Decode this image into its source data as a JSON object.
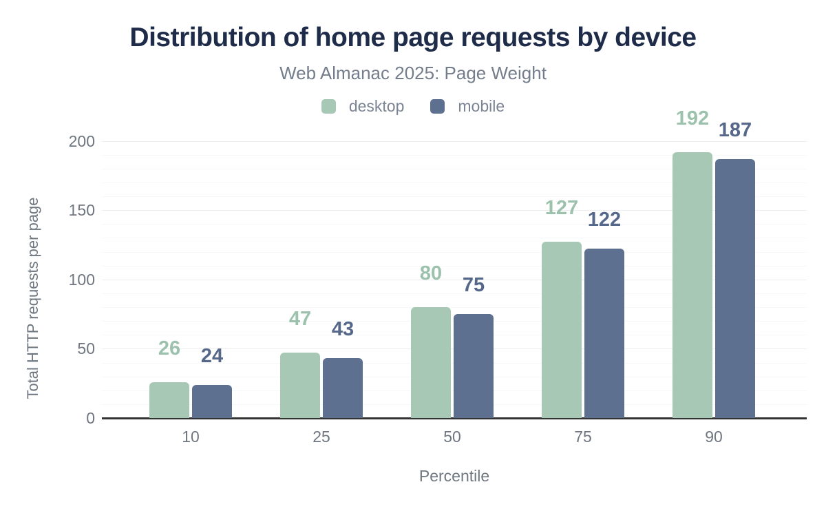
{
  "header": {
    "title": "Distribution of home page requests by device",
    "subtitle": "Web Almanac 2025: Page Weight"
  },
  "accent_colors": {
    "title_navy": "#1e2b49",
    "desktop_green": "#a6c8b5",
    "mobile_slate": "#5e7090",
    "axis_baseline": "#333333",
    "text_gray": "#6f7680"
  },
  "chart_data": {
    "type": "bar",
    "title": "Distribution of home page requests by device",
    "subtitle": "Web Almanac 2025: Page Weight",
    "categories": [
      "10",
      "25",
      "50",
      "75",
      "90"
    ],
    "series": [
      {
        "name": "desktop",
        "color": "#a6c8b5",
        "label_color": "#9cc2ad",
        "values": [
          26,
          47,
          80,
          127,
          192
        ]
      },
      {
        "name": "mobile",
        "color": "#5e7090",
        "label_color": "#56688a",
        "values": [
          24,
          43,
          75,
          122,
          187
        ]
      }
    ],
    "xlabel": "Percentile",
    "ylabel": "Total HTTP requests per page",
    "y_ticks": [
      0,
      50,
      100,
      150,
      200
    ],
    "ylim": [
      0,
      210
    ],
    "minor_gridline_step": 10,
    "major_gridline_step": 50,
    "grid": "on",
    "legend_position": "top",
    "data_labels": "on"
  }
}
